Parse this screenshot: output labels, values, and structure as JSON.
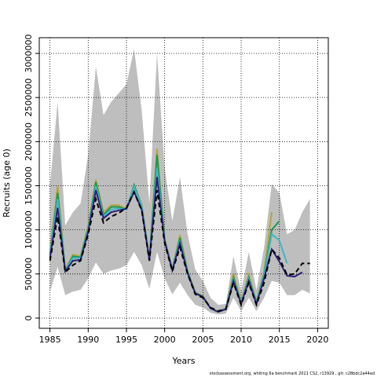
{
  "chart_data": {
    "type": "line",
    "x_label": "Years",
    "y_label": "Recruits (age 0)",
    "footnote": "stockassessment.org, whiting 6a benchmark 2021 CS2, r13929 , git: c28bdc2a44ad",
    "x": [
      1985,
      1986,
      1987,
      1988,
      1989,
      1990,
      1991,
      1992,
      1993,
      1994,
      1995,
      1996,
      1997,
      1998,
      1999,
      2000,
      2001,
      2002,
      2003,
      2004,
      2005,
      2006,
      2007,
      2008,
      2009,
      2010,
      2011,
      2012,
      2013,
      2014,
      2015,
      2016,
      2017,
      2018,
      2019
    ],
    "xlim": [
      1983.6,
      2021.4
    ],
    "xticks": [
      1985,
      1990,
      1995,
      2000,
      2005,
      2010,
      2015,
      2020
    ],
    "ylim": [
      -116000,
      3178000
    ],
    "yticks": [
      0,
      500000,
      1000000,
      1500000,
      2000000,
      2500000,
      3000000
    ],
    "grid": true,
    "band": {
      "color": "#bebebe",
      "upper": [
        1500000,
        2450000,
        1050000,
        1200000,
        1300000,
        1850000,
        2850000,
        2300000,
        2450000,
        2550000,
        2650000,
        3050000,
        2350000,
        1300000,
        3000000,
        1700000,
        1100000,
        1600000,
        950000,
        550000,
        420000,
        230000,
        150000,
        160000,
        700000,
        300000,
        750000,
        320000,
        800000,
        1520000,
        1420000,
        950000,
        1000000,
        1200000,
        1350000
      ],
      "lower": [
        300000,
        580000,
        260000,
        300000,
        320000,
        450000,
        630000,
        500000,
        540000,
        560000,
        600000,
        750000,
        600000,
        330000,
        750000,
        450000,
        270000,
        400000,
        260000,
        150000,
        120000,
        60000,
        40000,
        50000,
        230000,
        80000,
        230000,
        80000,
        230000,
        420000,
        400000,
        260000,
        260000,
        320000,
        280000
      ]
    },
    "series": [
      {
        "color": "#b5a642",
        "values": [
          740000,
          1500000,
          550000,
          720000,
          700000,
          1050000,
          1570000,
          1200000,
          1280000,
          1280000,
          1240000,
          1480000,
          1280000,
          670000,
          1920000,
          900000,
          555000,
          940000,
          535000,
          290000,
          250000,
          115000,
          72000,
          115000,
          500000,
          180000,
          490000,
          185000,
          520000,
          1200000,
          null,
          null,
          null,
          null,
          null
        ]
      },
      {
        "color": "#1a9850",
        "values": [
          720000,
          1420000,
          540000,
          700000,
          690000,
          1020000,
          1540000,
          1170000,
          1260000,
          1260000,
          1230000,
          1510000,
          1270000,
          670000,
          1850000,
          890000,
          550000,
          910000,
          530000,
          285000,
          245000,
          110000,
          70000,
          110000,
          460000,
          175000,
          460000,
          180000,
          500000,
          1000000,
          1100000,
          null,
          null,
          null,
          null
        ]
      },
      {
        "color": "#41b6c4",
        "values": [
          700000,
          1350000,
          540000,
          680000,
          680000,
          1000000,
          1500000,
          1150000,
          1230000,
          1240000,
          1230000,
          1490000,
          1260000,
          670000,
          1700000,
          880000,
          545000,
          880000,
          520000,
          280000,
          240000,
          110000,
          70000,
          110000,
          440000,
          170000,
          440000,
          170000,
          480000,
          950000,
          880000,
          620000,
          null,
          null,
          null
        ]
      },
      {
        "color": "#2c1f7a",
        "values": [
          680000,
          1250000,
          530000,
          650000,
          660000,
          980000,
          1450000,
          1130000,
          1200000,
          1220000,
          1240000,
          1430000,
          1230000,
          660000,
          1600000,
          870000,
          540000,
          850000,
          510000,
          280000,
          240000,
          110000,
          70000,
          100000,
          420000,
          160000,
          420000,
          160000,
          450000,
          780000,
          640000,
          480000,
          470000,
          520000,
          null
        ]
      },
      {
        "color": "#000000",
        "dashed": true,
        "values": [
          650000,
          1150000,
          520000,
          600000,
          650000,
          950000,
          1350000,
          1080000,
          1150000,
          1190000,
          1250000,
          1430000,
          1220000,
          650000,
          1450000,
          850000,
          530000,
          800000,
          500000,
          270000,
          230000,
          120000,
          80000,
          100000,
          400000,
          150000,
          400000,
          150000,
          400000,
          780000,
          680000,
          490000,
          500000,
          620000,
          620000
        ]
      }
    ]
  }
}
